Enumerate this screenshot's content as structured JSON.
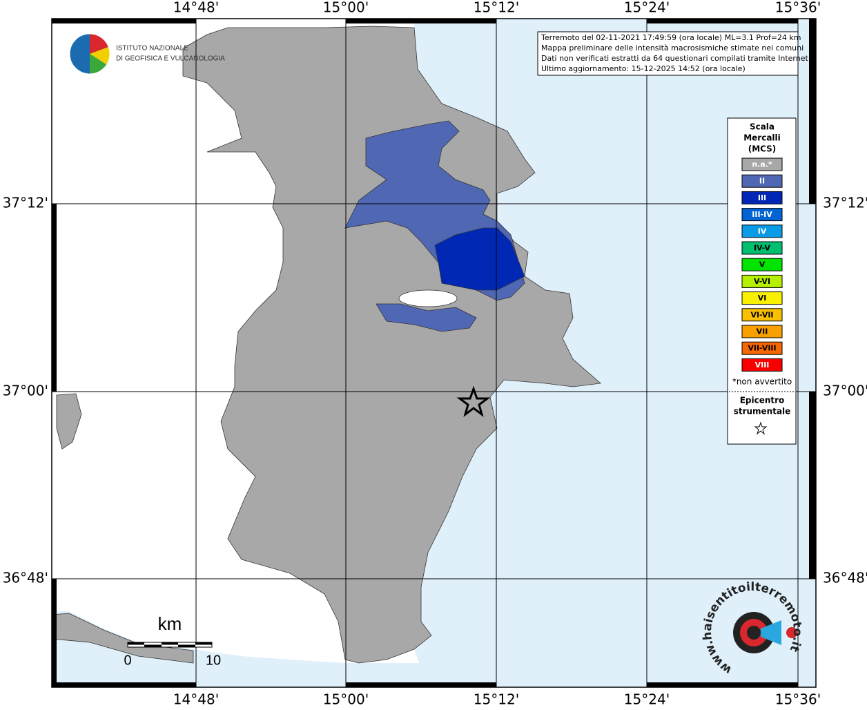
{
  "map": {
    "lon_labels": [
      "14°48'",
      "15°00'",
      "15°12'",
      "15°24'",
      "15°36'"
    ],
    "lat_labels": [
      "37°12'",
      "37°00'",
      "36°48'"
    ],
    "info": [
      "Terremoto del 02-11-2021 17:49:59 (ora locale) ML=3.1 Prof=24 km",
      "Mappa preliminare delle intensità macrosismiche stimate nei comuni",
      "Dati non verificati estratti da 64 questionari compilati tramite Internet.",
      "Ultimo aggiornamento: 15-12-2025 14:52 (ora locale)"
    ],
    "logo": [
      "ISTITUTO NAZIONALE",
      "DI GEOFISICA E VULCANOLOGIA"
    ],
    "legend": {
      "title": [
        "Scala",
        "Mercalli",
        "(MCS)"
      ],
      "classes": [
        {
          "label": "n.a.*",
          "color": "#a8a8a8",
          "label_color": "#ffffff"
        },
        {
          "label": "II",
          "color": "#5068b4",
          "label_color": "#ffffff"
        },
        {
          "label": "III",
          "color": "#0028b4",
          "label_color": "#ffffff"
        },
        {
          "label": "III-IV",
          "color": "#0064d4",
          "label_color": "#ffffff"
        },
        {
          "label": "IV",
          "color": "#0a9be6",
          "label_color": "#ffffff"
        },
        {
          "label": "IV-V",
          "color": "#00c070",
          "label_color": "#000000"
        },
        {
          "label": "V",
          "color": "#00e400",
          "label_color": "#000000"
        },
        {
          "label": "V-VI",
          "color": "#b4f000",
          "label_color": "#000000"
        },
        {
          "label": "VI",
          "color": "#f8f000",
          "label_color": "#000000"
        },
        {
          "label": "VI-VII",
          "color": "#f8c000",
          "label_color": "#000000"
        },
        {
          "label": "VII",
          "color": "#f8a000",
          "label_color": "#000000"
        },
        {
          "label": "VII-VIII",
          "color": "#f86800",
          "label_color": "#000000"
        },
        {
          "label": "VIII",
          "color": "#f80000",
          "label_color": "#ffffff"
        }
      ],
      "note": "*non avvertito",
      "epicenter": [
        "Epicentro",
        "strumentale"
      ]
    },
    "scale_bar": {
      "unit": "km",
      "labels": [
        "0",
        "10"
      ]
    },
    "site_logo": "www.haisentitoilterremoto.it"
  }
}
